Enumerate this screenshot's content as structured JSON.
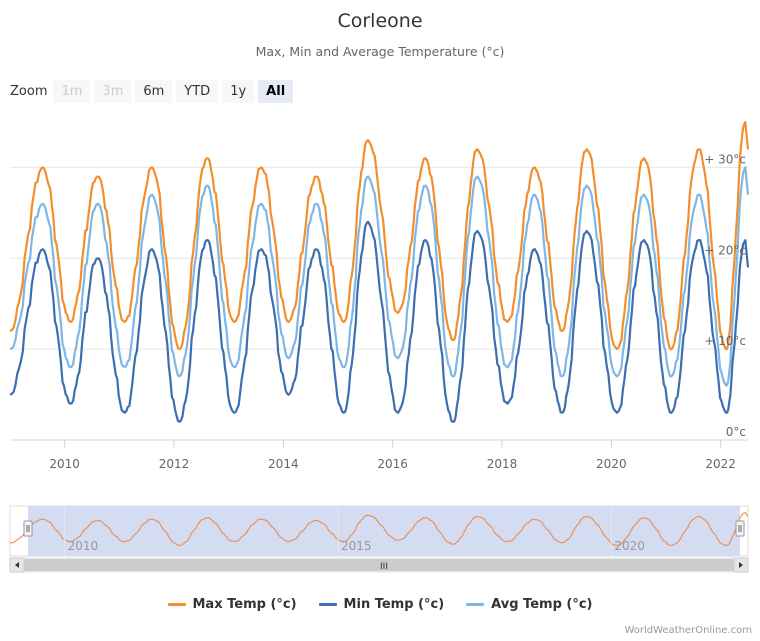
{
  "title": "Corleone",
  "subtitle": "Max, Min and Average Temperature (°c)",
  "zoom": {
    "label": "Zoom",
    "buttons": [
      {
        "label": "1m",
        "state": "disabled"
      },
      {
        "label": "3m",
        "state": "disabled"
      },
      {
        "label": "6m",
        "state": "normal"
      },
      {
        "label": "YTD",
        "state": "normal"
      },
      {
        "label": "1y",
        "state": "normal"
      },
      {
        "label": "All",
        "state": "active"
      }
    ]
  },
  "navigator": {
    "labels": [
      "2010",
      "2015",
      "2020"
    ],
    "scroll_grip": "III"
  },
  "legend": [
    {
      "name": "Max Temp (°c)",
      "color": "#f28f2c"
    },
    {
      "name": "Min Temp (°c)",
      "color": "#3d6eb0"
    },
    {
      "name": "Avg Temp (°c)",
      "color": "#7fb6e6"
    }
  ],
  "credit": "WorldWeatherOnline.com",
  "chart_data": {
    "type": "line",
    "x_unit": "year",
    "xlim": [
      2009.0,
      2022.5
    ],
    "ylim": [
      0,
      35
    ],
    "y_ticks": [
      "0°c",
      "10°c",
      "20°c",
      "30°c"
    ],
    "x_ticks": [
      "2010",
      "2012",
      "2014",
      "2016",
      "2018",
      "2020",
      "2022"
    ],
    "grid": true,
    "legend_position": "bottom",
    "series": [
      {
        "name": "Max Temp (°c)",
        "color": "#f28f2c",
        "peaks": [
          [
            2009.6,
            30
          ],
          [
            2010.6,
            29
          ],
          [
            2011.6,
            30
          ],
          [
            2012.6,
            31
          ],
          [
            2013.6,
            30
          ],
          [
            2014.6,
            29
          ],
          [
            2015.55,
            33
          ],
          [
            2016.6,
            31
          ],
          [
            2017.55,
            32
          ],
          [
            2018.6,
            30
          ],
          [
            2019.55,
            32
          ],
          [
            2020.6,
            31
          ],
          [
            2021.6,
            32
          ],
          [
            2022.45,
            35
          ]
        ],
        "troughs": [
          [
            2009.0,
            12
          ],
          [
            2010.1,
            13
          ],
          [
            2011.1,
            13
          ],
          [
            2012.1,
            10
          ],
          [
            2013.1,
            13
          ],
          [
            2014.1,
            13
          ],
          [
            2015.1,
            13
          ],
          [
            2016.1,
            14
          ],
          [
            2017.1,
            11
          ],
          [
            2018.1,
            13
          ],
          [
            2019.1,
            12
          ],
          [
            2020.1,
            10
          ],
          [
            2021.1,
            10
          ],
          [
            2022.1,
            10
          ]
        ]
      },
      {
        "name": "Min Temp (°c)",
        "color": "#3d6eb0",
        "peaks": [
          [
            2009.6,
            21
          ],
          [
            2010.6,
            20
          ],
          [
            2011.6,
            21
          ],
          [
            2012.6,
            22
          ],
          [
            2013.6,
            21
          ],
          [
            2014.6,
            21
          ],
          [
            2015.55,
            24
          ],
          [
            2016.6,
            22
          ],
          [
            2017.55,
            23
          ],
          [
            2018.6,
            21
          ],
          [
            2019.55,
            23
          ],
          [
            2020.6,
            22
          ],
          [
            2021.6,
            22
          ],
          [
            2022.45,
            22
          ]
        ],
        "troughs": [
          [
            2009.0,
            5
          ],
          [
            2010.1,
            4
          ],
          [
            2011.1,
            3
          ],
          [
            2012.1,
            2
          ],
          [
            2013.1,
            3
          ],
          [
            2014.1,
            5
          ],
          [
            2015.1,
            3
          ],
          [
            2016.1,
            3
          ],
          [
            2017.1,
            2
          ],
          [
            2018.1,
            4
          ],
          [
            2019.1,
            3
          ],
          [
            2020.1,
            3
          ],
          [
            2021.1,
            3
          ],
          [
            2022.1,
            3
          ]
        ]
      },
      {
        "name": "Avg Temp (°c)",
        "color": "#7fb6e6",
        "peaks": [
          [
            2009.6,
            26
          ],
          [
            2010.6,
            26
          ],
          [
            2011.6,
            27
          ],
          [
            2012.6,
            28
          ],
          [
            2013.6,
            26
          ],
          [
            2014.6,
            26
          ],
          [
            2015.55,
            29
          ],
          [
            2016.6,
            28
          ],
          [
            2017.55,
            29
          ],
          [
            2018.6,
            27
          ],
          [
            2019.55,
            28
          ],
          [
            2020.6,
            27
          ],
          [
            2021.6,
            27
          ],
          [
            2022.45,
            30
          ]
        ],
        "troughs": [
          [
            2009.0,
            10
          ],
          [
            2010.1,
            8
          ],
          [
            2011.1,
            8
          ],
          [
            2012.1,
            7
          ],
          [
            2013.1,
            8
          ],
          [
            2014.1,
            9
          ],
          [
            2015.1,
            8
          ],
          [
            2016.1,
            9
          ],
          [
            2017.1,
            7
          ],
          [
            2018.1,
            8
          ],
          [
            2019.1,
            7
          ],
          [
            2020.1,
            7
          ],
          [
            2021.1,
            7
          ],
          [
            2022.1,
            6
          ]
        ]
      }
    ]
  }
}
